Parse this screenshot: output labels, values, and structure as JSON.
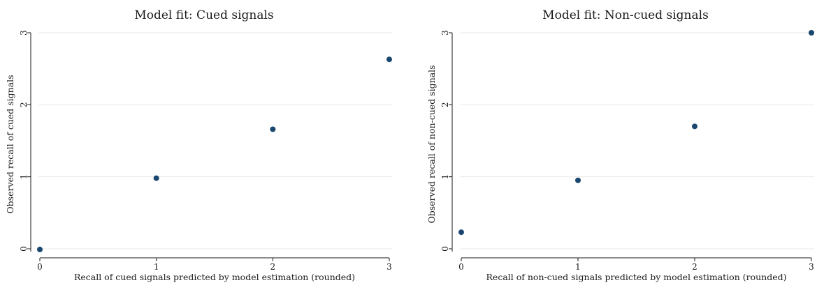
{
  "chart_data": [
    {
      "type": "scatter",
      "title": "Model fit: Cued signals",
      "xlabel": "Recall of cued signals predicted by model estimation (rounded)",
      "ylabel": "Observed recall of cued signals",
      "xlim": [
        0,
        3
      ],
      "ylim": [
        0,
        3
      ],
      "xticks": [
        "0",
        "1",
        "2",
        "3"
      ],
      "yticks": [
        "0",
        "1",
        "2",
        "3"
      ],
      "grid": true,
      "x": [
        0,
        1,
        2,
        3
      ],
      "y": [
        -0.01,
        0.98,
        1.66,
        2.63
      ],
      "color": "#1a476f"
    },
    {
      "type": "scatter",
      "title": "Model fit: Non-cued signals",
      "xlabel": "Recall of non-cued signals predicted by model estimation (rounded)",
      "ylabel": "Observed recall of non-cued signals",
      "xlim": [
        0,
        3
      ],
      "ylim": [
        0,
        3
      ],
      "xticks": [
        "0",
        "1",
        "2",
        "3"
      ],
      "yticks": [
        "0",
        "1",
        "2",
        "3"
      ],
      "grid": true,
      "x": [
        0,
        1,
        2,
        3
      ],
      "y": [
        0.23,
        0.95,
        1.7,
        3.0
      ],
      "color": "#1a476f"
    }
  ]
}
